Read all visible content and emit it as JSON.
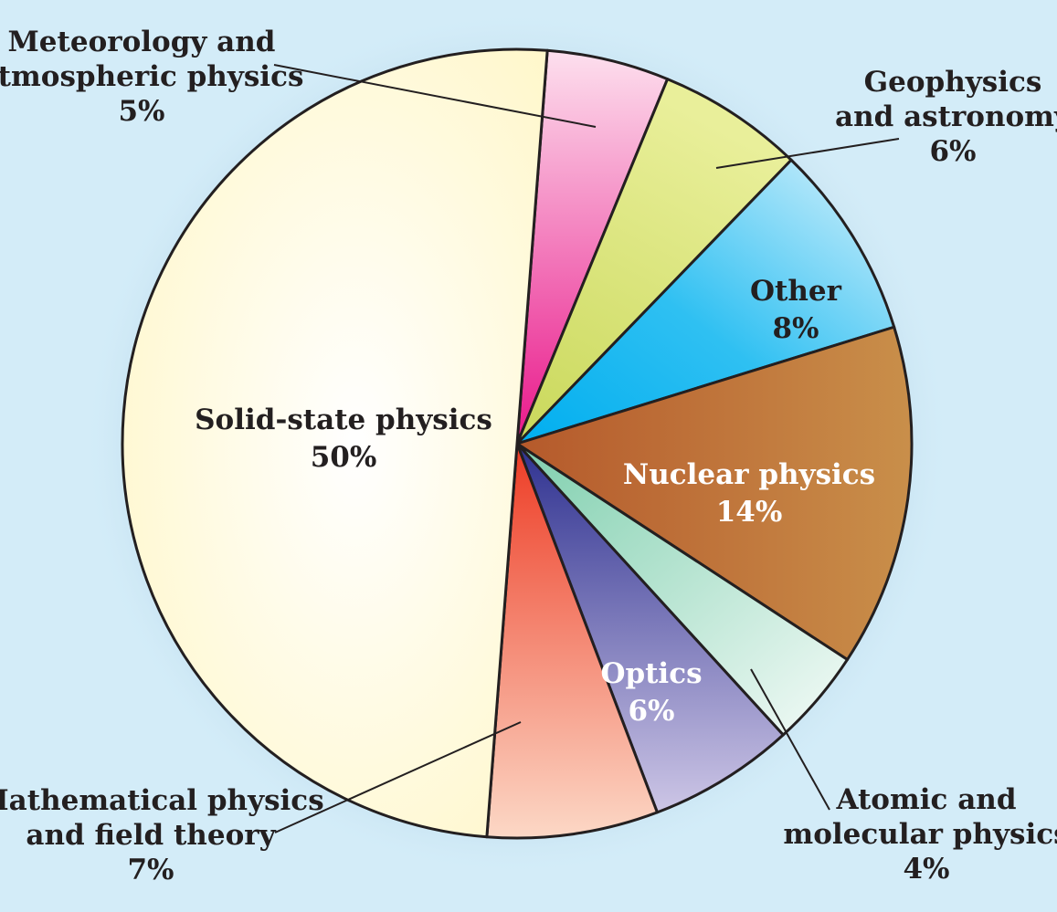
{
  "chart_data": {
    "type": "pie",
    "title": "",
    "slices": [
      {
        "key": "solid",
        "name": "Solid-state physics",
        "value": 50,
        "label": "50%",
        "color": "#fffde8"
      },
      {
        "key": "meteo",
        "name": "Meteorology and atmospheric physics",
        "value": 5,
        "label": "5%",
        "color": "#f07ab8"
      },
      {
        "key": "geo",
        "name": "Geophysics and astronomy",
        "value": 6,
        "label": "6%",
        "color": "#d7e37c"
      },
      {
        "key": "other",
        "name": "Other",
        "value": 8,
        "label": "8%",
        "color": "#3ec2ef"
      },
      {
        "key": "nuclear",
        "name": "Nuclear physics",
        "value": 14,
        "label": "14%",
        "color": "#c2773f"
      },
      {
        "key": "atomic",
        "name": "Atomic and molecular physics",
        "value": 4,
        "label": "4%",
        "color": "#b4e0cc"
      },
      {
        "key": "optics",
        "name": "Optics",
        "value": 6,
        "label": "6%",
        "color": "#7b72b6"
      },
      {
        "key": "math",
        "name": "Mathematical physics and field theory",
        "value": 7,
        "label": "7%",
        "color": "#f4957a"
      }
    ],
    "labels": {
      "solid": [
        "Solid-state physics",
        "50%"
      ],
      "meteo": [
        "Meteorology and",
        "atmospheric physics",
        "5%"
      ],
      "geo": [
        "Geophysics",
        "and astronomy",
        "6%"
      ],
      "other": [
        "Other",
        "8%"
      ],
      "nuclear": [
        "Nuclear physics",
        "14%"
      ],
      "atomic": [
        "Atomic and",
        "molecular physics",
        "4%"
      ],
      "optics": [
        "Optics",
        "6%"
      ],
      "math": [
        "Mathematical physics",
        "and field theory",
        "7%"
      ]
    }
  }
}
